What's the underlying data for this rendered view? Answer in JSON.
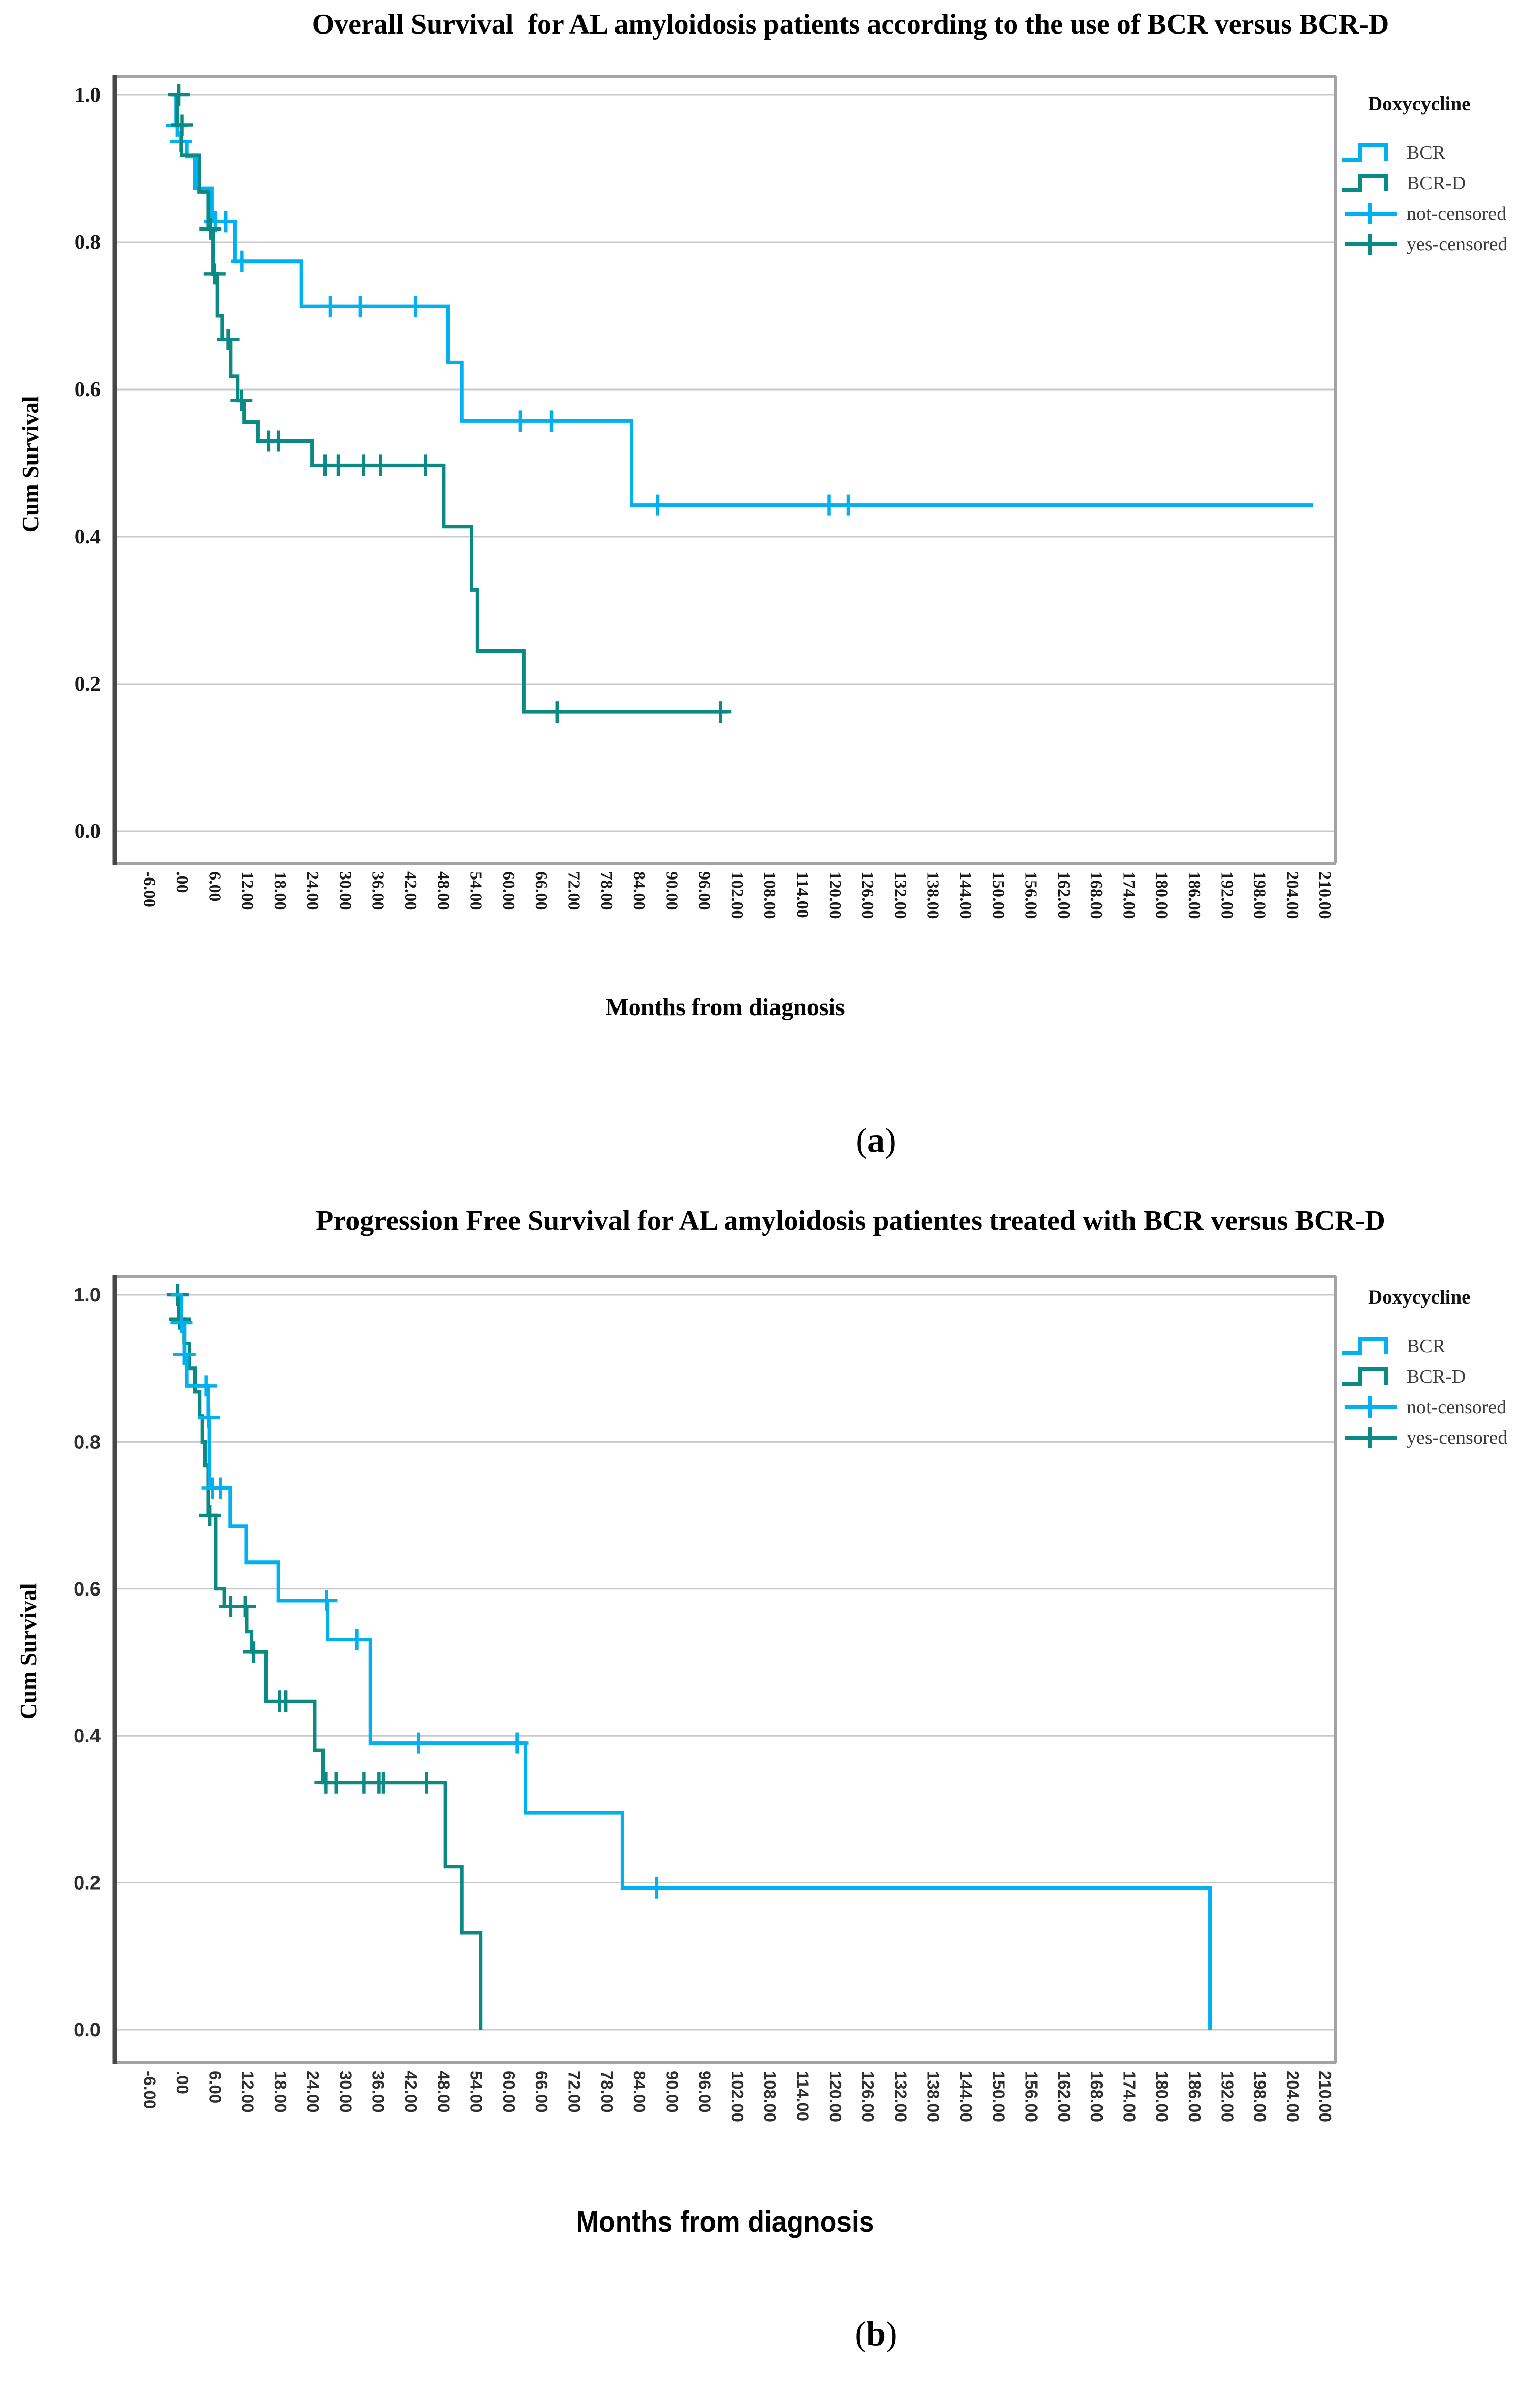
{
  "page": {
    "background": "#ffffff"
  },
  "colors": {
    "bcr": "#00b0f0",
    "bcr_d": "#0b8a84",
    "gridline": "#c9c9c9",
    "frame": "#a3a3a3",
    "axis": "#474747",
    "tick_text_a": "#1a1a1a",
    "tick_text_b": "#2f2f2f",
    "legend_text": "#3d3d3d"
  },
  "charts": [
    {
      "title": "Overall Survival  for AL amyloidosis patients according to the use of BCR versus BCR-D",
      "xlabel": "Months from diagnosis",
      "ylabel": "Cum Survival",
      "caption_pre": "(",
      "caption_letter": "a",
      "caption_post": ")",
      "legend": {
        "title": "Doxycycline",
        "items": [
          {
            "label": "BCR",
            "glyph": "step",
            "color": "#00b0f0"
          },
          {
            "label": "BCR-D",
            "glyph": "step",
            "color": "#0b8a84"
          },
          {
            "label": "not-censored",
            "glyph": "plus",
            "color": "#00b0f0"
          },
          {
            "label": "yes-censored",
            "glyph": "plus",
            "color": "#0b8a84"
          }
        ]
      },
      "chart_data": {
        "type": "line",
        "subtype": "kaplan-meier-step",
        "title": "Overall Survival  for AL amyloidosis patients according to the use of BCR versus BCR-D",
        "xlabel": "Months from diagnosis",
        "ylabel": "Cum Survival",
        "xlim": [
          -12,
          216
        ],
        "ylim": [
          -0.04,
          1.05
        ],
        "grid": true,
        "legend_position": "outside-top-right",
        "x_tick_labels": [
          "-6.00",
          ".00",
          "6.00",
          "12.00",
          "18.00",
          "24.00",
          "30.00",
          "36.00",
          "42.00",
          "48.00",
          "54.00",
          "60.00",
          "66.00",
          "72.00",
          "78.00",
          "84.00",
          "90.00",
          "96.00",
          "102.00",
          "108.00",
          "114.00",
          "120.00",
          "126.00",
          "132.00",
          "138.00",
          "144.00",
          "150.00",
          "156.00",
          "162.00",
          "168.00",
          "174.00",
          "180.00",
          "186.00",
          "192.00",
          "198.00",
          "204.00",
          "210.00"
        ],
        "y_tick_labels": [
          "1.0",
          "0.8",
          "0.6",
          "0.4",
          "0.2",
          "0.0"
        ],
        "series": [
          {
            "name": "BCR",
            "color": "#00b0f0",
            "steps": [
              [
                0,
                1.0
              ],
              [
                1,
                0.958
              ],
              [
                2,
                0.937
              ],
              [
                3,
                0.916
              ],
              [
                4.5,
                0.873
              ],
              [
                7.6,
                0.828
              ],
              [
                11.8,
                0.774
              ],
              [
                24,
                0.713
              ],
              [
                51,
                0.637
              ],
              [
                53.5,
                0.557
              ],
              [
                84.7,
                0.443
              ]
            ],
            "end_t": 210,
            "censored": [
              [
                1.2,
                0.958
              ],
              [
                1.9,
                0.937
              ],
              [
                8.2,
                0.828
              ],
              [
                10.1,
                0.828
              ],
              [
                13.1,
                0.774
              ],
              [
                29.3,
                0.713
              ],
              [
                34.8,
                0.713
              ],
              [
                45,
                0.713
              ],
              [
                64.2,
                0.557
              ],
              [
                70,
                0.557
              ],
              [
                89.5,
                0.443
              ],
              [
                121,
                0.443
              ],
              [
                124.5,
                0.443
              ]
            ]
          },
          {
            "name": "BCR-D",
            "color": "#0b8a84",
            "steps": [
              [
                0,
                1.0
              ],
              [
                1.2,
                0.959
              ],
              [
                2,
                0.918
              ],
              [
                5.2,
                0.868
              ],
              [
                6.9,
                0.818
              ],
              [
                7.8,
                0.757
              ],
              [
                8.6,
                0.7
              ],
              [
                9.5,
                0.668
              ],
              [
                11,
                0.618
              ],
              [
                12.3,
                0.585
              ],
              [
                13.5,
                0.556
              ],
              [
                16,
                0.53
              ],
              [
                26,
                0.497
              ],
              [
                50.2,
                0.414
              ],
              [
                55.3,
                0.328
              ],
              [
                56.4,
                0.245
              ],
              [
                64.9,
                0.162
              ]
            ],
            "end_t": 102.3,
            "censored": [
              [
                1.5,
                1.0
              ],
              [
                2.1,
                0.959
              ],
              [
                7.3,
                0.818
              ],
              [
                8.1,
                0.757
              ],
              [
                10.6,
                0.668
              ],
              [
                13,
                0.585
              ],
              [
                18,
                0.53
              ],
              [
                19.8,
                0.53
              ],
              [
                28.4,
                0.497
              ],
              [
                30.8,
                0.497
              ],
              [
                35.4,
                0.497
              ],
              [
                38.6,
                0.497
              ],
              [
                46.8,
                0.497
              ],
              [
                71,
                0.162
              ],
              [
                101,
                0.162
              ]
            ]
          }
        ]
      }
    },
    {
      "title": "Progression Free Survival for AL amyloidosis patientes treated with BCR versus BCR-D",
      "xlabel": "Months from diagnosis",
      "ylabel": "Cum Survival",
      "caption_pre": "(",
      "caption_letter": "b",
      "caption_post": ")",
      "legend": {
        "title": "Doxycycline",
        "items": [
          {
            "label": "BCR",
            "glyph": "step",
            "color": "#00b0f0"
          },
          {
            "label": "BCR-D",
            "glyph": "step",
            "color": "#0b8a84"
          },
          {
            "label": "not-censored",
            "glyph": "plus",
            "color": "#00b0f0"
          },
          {
            "label": "yes-censored",
            "glyph": "plus",
            "color": "#0b8a84"
          }
        ]
      },
      "chart_data": {
        "type": "line",
        "subtype": "kaplan-meier-step",
        "title": "Progression Free Survival for AL amyloidosis patientes treated with BCR versus BCR-D",
        "xlabel": "Months from diagnosis",
        "ylabel": "Cum Survival",
        "xlim": [
          -12,
          216
        ],
        "ylim": [
          -0.04,
          1.05
        ],
        "grid": true,
        "legend_position": "outside-top-right",
        "x_tick_labels": [
          "-6.00",
          ".00",
          "6.00",
          "12.00",
          "18.00",
          "24.00",
          "30.00",
          "36.00",
          "42.00",
          "48.00",
          "54.00",
          "60.00",
          "66.00",
          "72.00",
          "78.00",
          "84.00",
          "90.00",
          "96.00",
          "102.00",
          "108.00",
          "114.00",
          "120.00",
          "126.00",
          "132.00",
          "138.00",
          "144.00",
          "150.00",
          "156.00",
          "162.00",
          "168.00",
          "174.00",
          "180.00",
          "186.00",
          "192.00",
          "198.00",
          "204.00",
          "210.00"
        ],
        "y_tick_labels": [
          "1.0",
          "0.8",
          "0.6",
          "0.4",
          "0.2",
          "0.0"
        ],
        "series": [
          {
            "name": "BCR-D",
            "color": "#0b8a84",
            "steps": [
              [
                0,
                1.0
              ],
              [
                1.5,
                0.967
              ],
              [
                2.5,
                0.934
              ],
              [
                3.5,
                0.9
              ],
              [
                4.5,
                0.868
              ],
              [
                5.3,
                0.835
              ],
              [
                5.8,
                0.8
              ],
              [
                6.3,
                0.768
              ],
              [
                6.9,
                0.7
              ],
              [
                8.3,
                0.6
              ],
              [
                9.9,
                0.576
              ],
              [
                14,
                0.542
              ],
              [
                14.9,
                0.514
              ],
              [
                17.5,
                0.447
              ],
              [
                26.5,
                0.38
              ],
              [
                28,
                0.336
              ],
              [
                50.5,
                0.222
              ],
              [
                53.5,
                0.132
              ],
              [
                57,
                0.0
              ]
            ],
            "end_t": 57,
            "censored": [
              [
                1.3,
                1.0
              ],
              [
                1.7,
                0.967
              ],
              [
                7.2,
                0.7
              ],
              [
                11,
                0.576
              ],
              [
                13.7,
                0.576
              ],
              [
                15.3,
                0.514
              ],
              [
                20,
                0.447
              ],
              [
                21.2,
                0.447
              ],
              [
                28.5,
                0.336
              ],
              [
                30.4,
                0.336
              ],
              [
                35.5,
                0.336
              ],
              [
                38.3,
                0.336
              ],
              [
                39.1,
                0.336
              ],
              [
                47,
                0.336
              ]
            ]
          },
          {
            "name": "BCR",
            "color": "#00b0f0",
            "steps": [
              [
                0,
                1.0
              ],
              [
                2,
                0.962
              ],
              [
                2.6,
                0.919
              ],
              [
                3,
                0.876
              ],
              [
                6.9,
                0.833
              ],
              [
                7.1,
                0.737
              ],
              [
                10.9,
                0.685
              ],
              [
                13.9,
                0.636
              ],
              [
                19.8,
                0.584
              ],
              [
                28.8,
                0.531
              ],
              [
                36.7,
                0.39
              ],
              [
                65.2,
                0.295
              ],
              [
                83,
                0.193
              ],
              [
                191,
                0.0
              ]
            ],
            "end_t": 191,
            "censored": [
              [
                2,
                0.962
              ],
              [
                2.5,
                0.919
              ],
              [
                6.5,
                0.876
              ],
              [
                7,
                0.833
              ],
              [
                7.7,
                0.737
              ],
              [
                9.2,
                0.737
              ],
              [
                28.6,
                0.584
              ],
              [
                34.2,
                0.531
              ],
              [
                45.6,
                0.39
              ],
              [
                63.7,
                0.39
              ],
              [
                89.3,
                0.193
              ]
            ]
          }
        ]
      }
    }
  ]
}
